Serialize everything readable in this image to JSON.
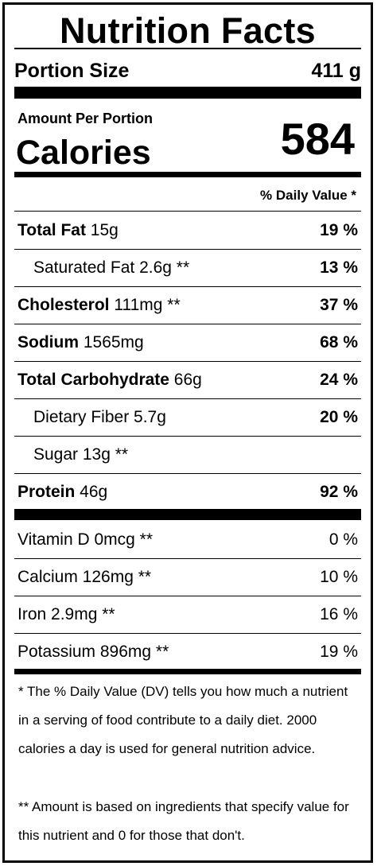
{
  "title": "Nutrition Facts",
  "portion": {
    "label": "Portion Size",
    "value": "411 g"
  },
  "amount_per_portion": "Amount Per Portion",
  "calories": {
    "label": "Calories",
    "value": "584"
  },
  "daily_value_header": "% Daily Value *",
  "nutrients": [
    {
      "name": "Total Fat",
      "amount": " 15g",
      "dv": "19 %"
    },
    {
      "name": "Saturated Fat 2.6g **",
      "amount": "",
      "dv": "13 %"
    },
    {
      "name": "Cholesterol",
      "amount": " 111mg **",
      "dv": "37 %"
    },
    {
      "name": "Sodium",
      "amount": " 1565mg",
      "dv": "68 %"
    },
    {
      "name": "Total Carbohydrate",
      "amount": " 66g",
      "dv": "24 %"
    },
    {
      "name": "Dietary Fiber 5.7g",
      "amount": "",
      "dv": "20 %"
    },
    {
      "name": "Sugar 13g **",
      "amount": "",
      "dv": ""
    },
    {
      "name": "Protein",
      "amount": " 46g",
      "dv": "92 %"
    }
  ],
  "vitamins": [
    {
      "name": "Vitamin D 0mcg **",
      "dv": "0 %"
    },
    {
      "name": "Calcium 126mg **",
      "dv": "10 %"
    },
    {
      "name": "Iron 2.9mg **",
      "dv": "16 %"
    },
    {
      "name": "Potassium 896mg **",
      "dv": "19 %"
    }
  ],
  "footnotes": [
    "* The % Daily Value (DV) tells you how much a nutrient in a serving of food contribute to a daily diet. 2000 calories a day is used for general nutrition advice.",
    "** Amount is based on ingredients that specify value for this nutrient and 0 for those that don't."
  ]
}
